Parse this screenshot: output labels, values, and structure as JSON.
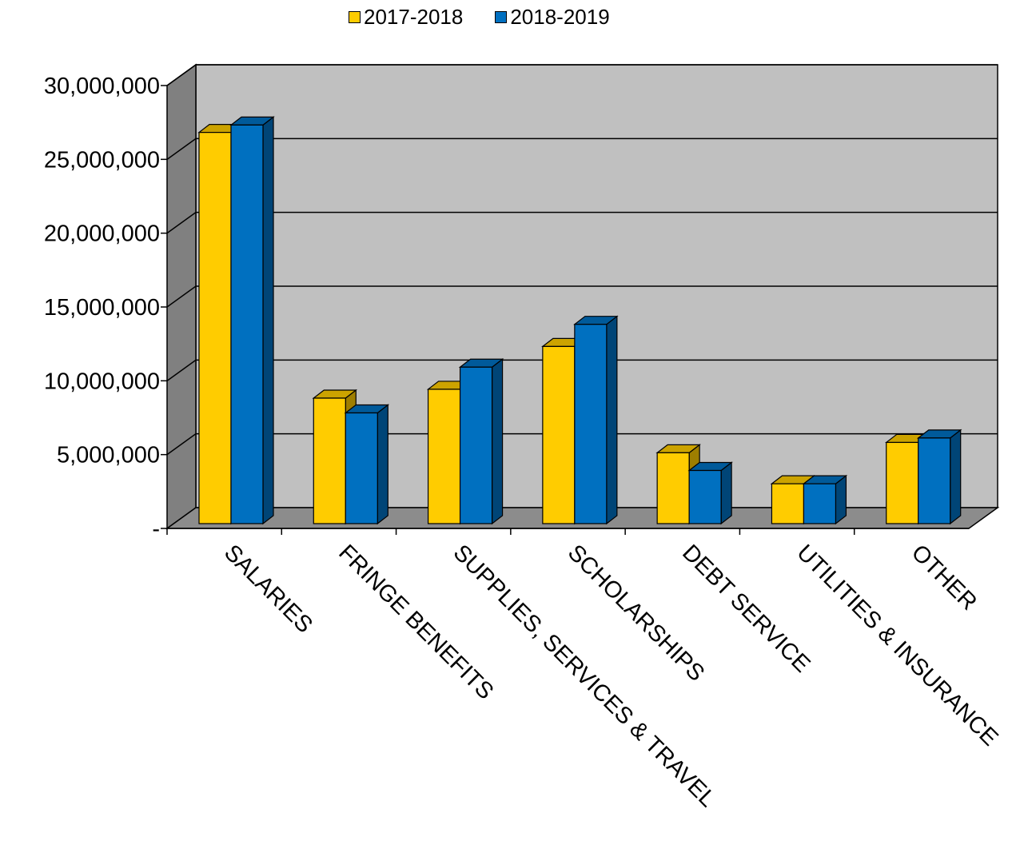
{
  "chart_data": {
    "type": "bar",
    "categories": [
      "SALARIES",
      "FRINGE BENEFITS",
      "SUPPLIES, SERVICES & TRAVEL",
      "SCHOLARSHIPS",
      "DEBT SERVICE",
      "UTILITIES & INSURANCE",
      "OTHER"
    ],
    "series": [
      {
        "name": "2017-2018",
        "values": [
          26500000,
          8500000,
          9100000,
          12000000,
          4800000,
          2700000,
          5500000
        ],
        "color": "#FFCC00"
      },
      {
        "name": "2018-2019",
        "values": [
          27000000,
          7500000,
          10600000,
          13500000,
          3600000,
          2700000,
          5800000
        ],
        "color": "#0070C0"
      }
    ],
    "yticks": [
      "-",
      "5,000,000",
      "10,000,000",
      "15,000,000",
      "20,000,000",
      "25,000,000",
      "30,000,000"
    ],
    "ylim": [
      0,
      30000000
    ],
    "grid": true,
    "legend_position": "top",
    "style": "3d-clustered-column"
  }
}
